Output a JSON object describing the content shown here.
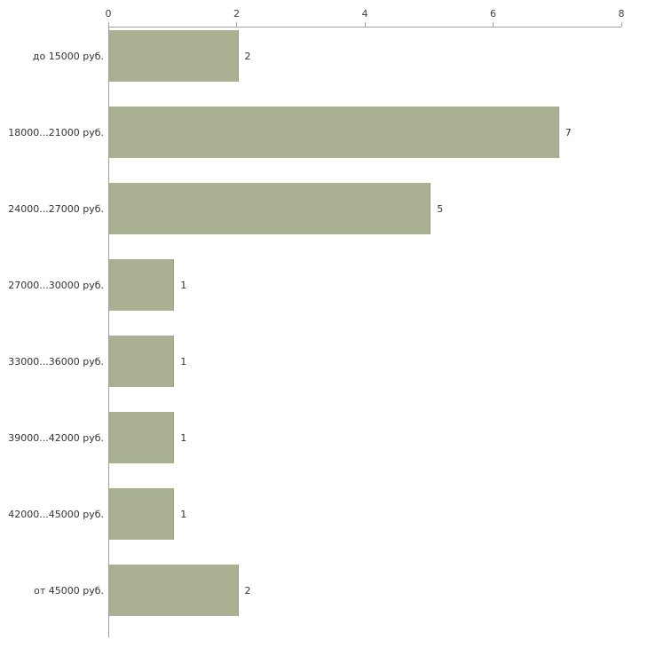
{
  "chart_data": {
    "type": "bar",
    "orientation": "horizontal",
    "title": "",
    "xlabel": "",
    "ylabel": "",
    "categories": [
      "до 15000 руб.",
      "18000...21000 руб.",
      "24000...27000 руб.",
      "27000...30000 руб.",
      "33000...36000 руб.",
      "39000...42000 руб.",
      "42000...45000 руб.",
      "от 45000 руб."
    ],
    "values": [
      2,
      7,
      5,
      1,
      1,
      1,
      1,
      2
    ],
    "x_ticks": [
      "0",
      "2",
      "4",
      "6",
      "8"
    ],
    "xlim": [
      0,
      8
    ],
    "grid": false,
    "legend": false,
    "colors": {
      "bar_fill": "#a9b192",
      "bar_border": "#9aa384",
      "axis_line": "#a0a0a0",
      "tick_text": "#404040",
      "label_text": "#333333",
      "background": "#ffffff"
    }
  }
}
